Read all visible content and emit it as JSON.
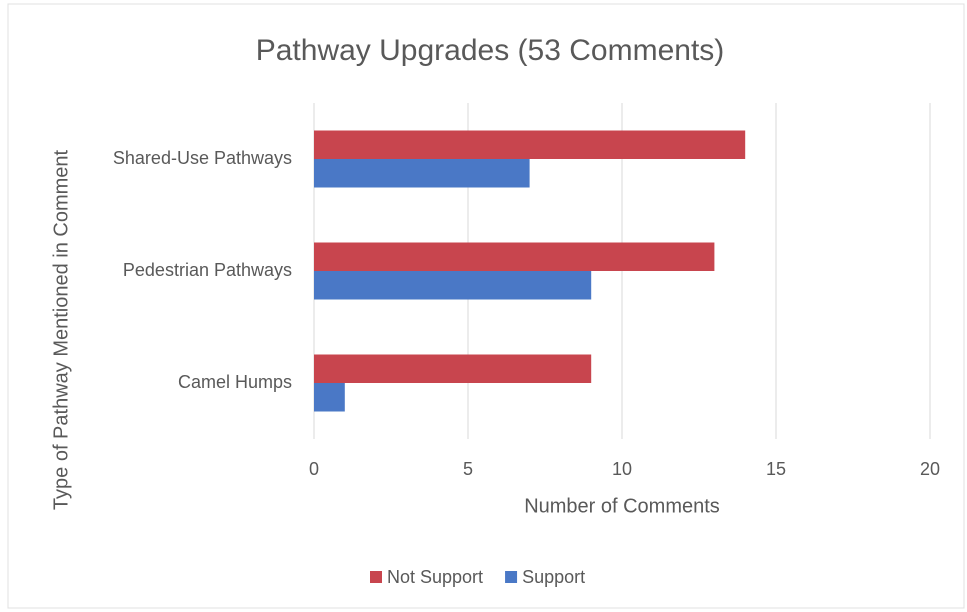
{
  "chart_data": {
    "type": "bar",
    "orientation": "horizontal",
    "title": "Pathway Upgrades (53 Comments)",
    "x_label": "Number of Comments",
    "y_label": "Type of Pathway Mentioned in Comment",
    "categories": [
      "Shared-Use Pathways",
      "Pedestrian Pathways",
      "Camel Humps"
    ],
    "series": [
      {
        "name": "Not Support",
        "color": "#c8454e",
        "values": [
          14,
          13,
          9
        ]
      },
      {
        "name": "Support",
        "color": "#4a78c6",
        "values": [
          7,
          9,
          1
        ]
      }
    ],
    "xlim": [
      0,
      20
    ],
    "xticks": [
      0,
      5,
      10,
      15,
      20
    ],
    "grid": true,
    "legend": "bottom"
  }
}
